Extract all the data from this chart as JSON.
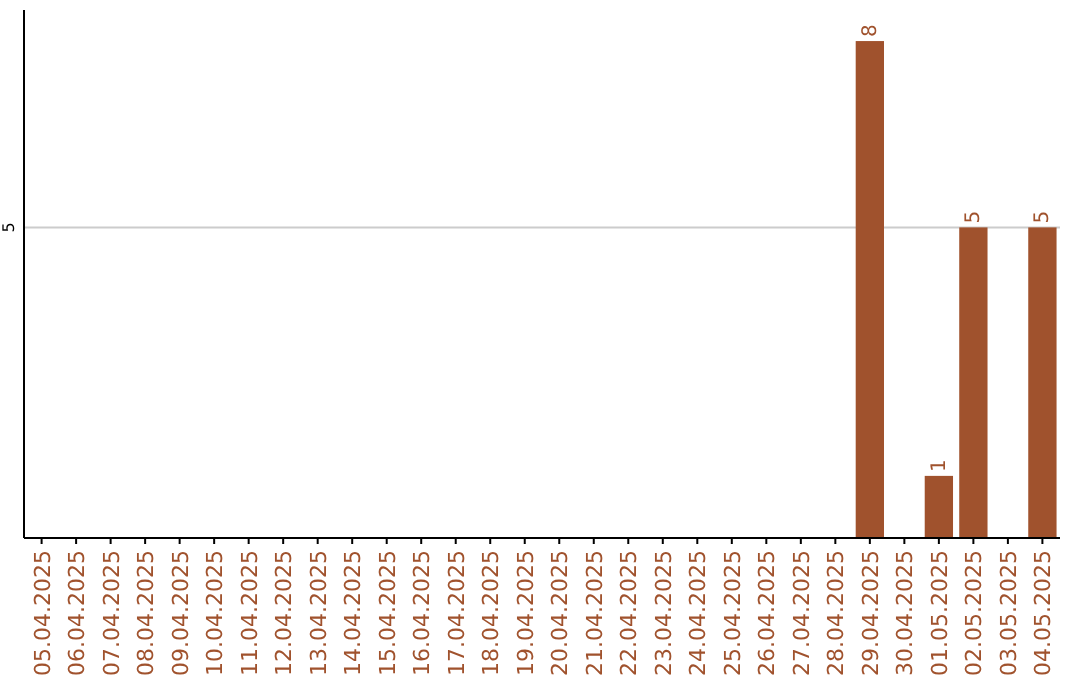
{
  "chart_data": {
    "type": "bar",
    "categories": [
      "05.04.2025",
      "06.04.2025",
      "07.04.2025",
      "08.04.2025",
      "09.04.2025",
      "10.04.2025",
      "11.04.2025",
      "12.04.2025",
      "13.04.2025",
      "14.04.2025",
      "15.04.2025",
      "16.04.2025",
      "17.04.2025",
      "18.04.2025",
      "19.04.2025",
      "20.04.2025",
      "21.04.2025",
      "22.04.2025",
      "23.04.2025",
      "24.04.2025",
      "25.04.2025",
      "26.04.2025",
      "27.04.2025",
      "28.04.2025",
      "29.04.2025",
      "30.04.2025",
      "01.05.2025",
      "02.05.2025",
      "03.05.2025",
      "04.05.2025"
    ],
    "values": [
      null,
      null,
      null,
      null,
      null,
      null,
      null,
      null,
      null,
      null,
      null,
      null,
      null,
      null,
      null,
      null,
      null,
      null,
      null,
      null,
      null,
      null,
      null,
      null,
      8,
      null,
      1,
      5,
      null,
      5
    ],
    "color": "#a0522d",
    "ylim": [
      0,
      8.5
    ],
    "yticks": [
      5
    ],
    "grid": "y",
    "data_labels": true
  }
}
